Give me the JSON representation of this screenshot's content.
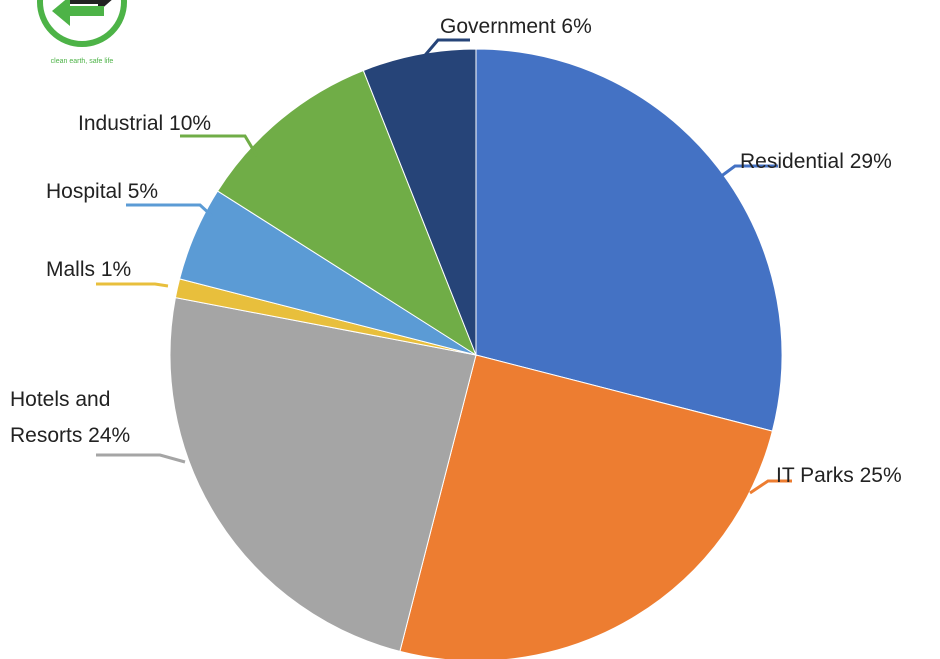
{
  "logo": {
    "tagline": "clean earth, safe life",
    "colors": {
      "ring": "#4db347",
      "arrow_green": "#4db347",
      "arrow_dark": "#222222"
    }
  },
  "chart_data": {
    "type": "pie",
    "title": "",
    "start_angle_deg": 0,
    "direction": "clockwise",
    "slices": [
      {
        "name": "Residential",
        "label": "Residential 29%",
        "value": 29,
        "color": "#4472c4"
      },
      {
        "name": "IT Parks",
        "label": "IT Parks 25%",
        "value": 25,
        "color": "#ed7d31"
      },
      {
        "name": "Hotels and Resorts",
        "label": "Hotels and\nResorts 24%",
        "value": 24,
        "color": "#a5a5a5"
      },
      {
        "name": "Malls",
        "label": "Malls 1%",
        "value": 1,
        "color": "#e8bf3c"
      },
      {
        "name": "Hospital",
        "label": "Hospital 5%",
        "value": 5,
        "color": "#5b9bd5"
      },
      {
        "name": "Industrial",
        "label": "Industrial 10%",
        "value": 10,
        "color": "#70ad47"
      },
      {
        "name": "Government",
        "label": "Government 6%",
        "value": 6,
        "color": "#264478"
      }
    ]
  }
}
